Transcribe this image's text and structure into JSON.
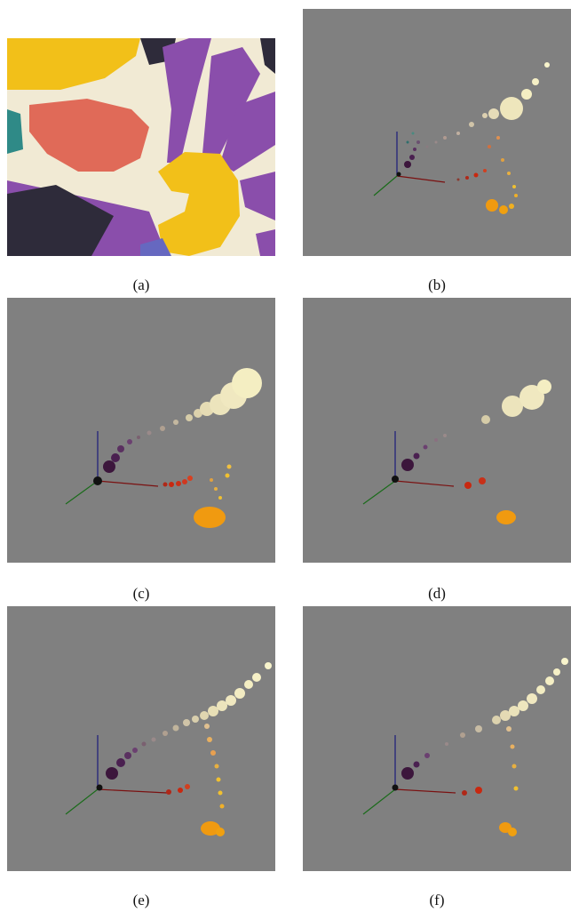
{
  "figure": {
    "captions": [
      "(a)",
      "(b)",
      "(c)",
      "(d)",
      "(e)",
      "(f)"
    ]
  },
  "colors": {
    "plot_background": "#808080",
    "axis_x": "#7a1010",
    "axis_y": "#1a6b1a",
    "axis_z": "#1a1a7a",
    "cream": "#f4eec2",
    "purple": "#3c163c",
    "red": "#c82810",
    "orange": "#f09a10",
    "yellow": "#f0c030",
    "teal": "#3a8a86"
  }
}
